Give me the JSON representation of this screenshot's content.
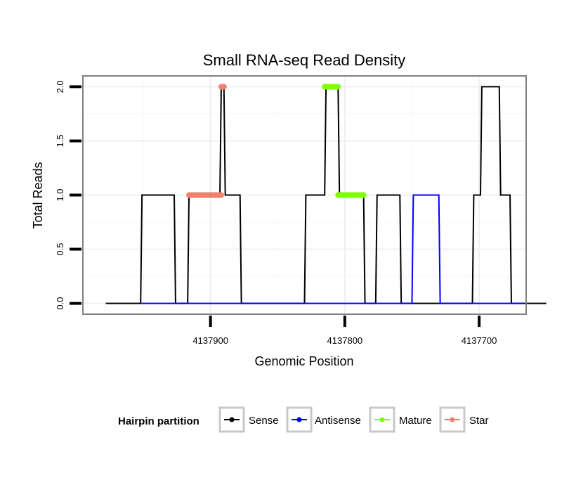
{
  "chart_data": {
    "type": "line",
    "title": "Small RNA-seq Read Density",
    "xlabel": "Genomic Position",
    "ylabel": "Total Reads",
    "x_reversed": true,
    "xlim": [
      4137995,
      4137665
    ],
    "ylim": [
      -0.1,
      2.1
    ],
    "x_ticks": [
      4137900,
      4137800,
      4137700
    ],
    "x_tick_labels": [
      "4137900",
      "4137800",
      "4137700"
    ],
    "y_ticks": [
      0,
      0.5,
      1,
      1.5,
      2
    ],
    "y_tick_labels": [
      "0.0",
      "0.5",
      "1.0",
      "1.5",
      "2.0"
    ],
    "grid": true,
    "legend": {
      "title": "Hairpin partition",
      "position": "bottom",
      "items": [
        {
          "label": "Sense",
          "color": "#000000"
        },
        {
          "label": "Antisense",
          "color": "#0000ff"
        },
        {
          "label": "Mature",
          "color": "#7fff00"
        },
        {
          "label": "Star",
          "color": "#f08070"
        }
      ]
    },
    "series": [
      {
        "name": "Sense",
        "color": "#000000",
        "kind": "line",
        "points": [
          [
            4137978,
            0
          ],
          [
            4137952,
            0
          ],
          [
            4137951,
            1
          ],
          [
            4137927,
            1
          ],
          [
            4137926,
            0
          ],
          [
            4137917,
            0
          ],
          [
            4137916,
            1
          ],
          [
            4137893,
            1
          ],
          [
            4137892,
            2
          ],
          [
            4137890,
            2
          ],
          [
            4137889,
            1
          ],
          [
            4137878,
            1
          ],
          [
            4137877,
            0
          ],
          [
            4137830,
            0
          ],
          [
            4137829,
            1
          ],
          [
            4137815,
            1
          ],
          [
            4137814,
            2
          ],
          [
            4137805,
            2
          ],
          [
            4137804,
            1
          ],
          [
            4137786,
            1
          ],
          [
            4137785,
            0
          ],
          [
            4137777,
            0
          ],
          [
            4137776,
            1
          ],
          [
            4137759,
            1
          ],
          [
            4137758,
            0
          ],
          [
            4137740,
            0
          ],
          [
            4137739,
            0
          ],
          [
            4137719,
            0
          ],
          [
            4137718,
            0
          ],
          [
            4137705,
            0
          ],
          [
            4137704,
            1
          ],
          [
            4137699,
            1
          ],
          [
            4137698,
            2
          ],
          [
            4137685,
            2
          ],
          [
            4137684,
            1
          ],
          [
            4137677,
            1
          ],
          [
            4137676,
            0
          ],
          [
            4137650,
            0
          ]
        ]
      },
      {
        "name": "Antisense",
        "color": "#0000ff",
        "kind": "line",
        "points": [
          [
            4137952,
            0
          ],
          [
            4137878,
            0
          ],
          [
            4137878,
            0
          ],
          [
            4137750,
            0
          ],
          [
            4137749,
            1
          ],
          [
            4137730,
            1
          ],
          [
            4137729,
            0
          ],
          [
            4137667,
            0
          ]
        ]
      },
      {
        "name": "Star",
        "color": "#f08070",
        "kind": "segments",
        "segments": [
          {
            "x_start": 4137916,
            "x_end": 4137892,
            "y": 1
          },
          {
            "x_start": 4137892,
            "x_end": 4137890,
            "y": 2
          }
        ]
      },
      {
        "name": "Mature",
        "color": "#7fff00",
        "kind": "segments",
        "segments": [
          {
            "x_start": 4137815,
            "x_end": 4137805,
            "y": 2
          },
          {
            "x_start": 4137805,
            "x_end": 4137786,
            "y": 1
          }
        ]
      }
    ]
  }
}
